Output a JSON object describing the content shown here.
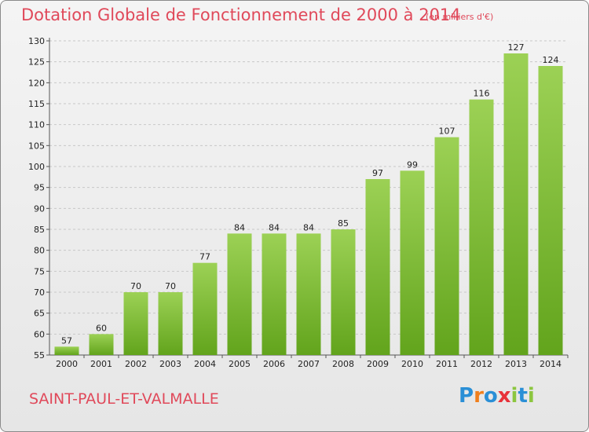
{
  "header": {
    "title": "Dotation Globale de Fonctionnement de 2000 à 2014",
    "unit": "(en milliers d'€)"
  },
  "footer": {
    "commune": "SAINT-PAUL-ET-VALMALLE",
    "logo_text": "Proxiti",
    "logo_letters": [
      {
        "ch": "P",
        "color": "#2a8fd6"
      },
      {
        "ch": "r",
        "color": "#f07f1c"
      },
      {
        "ch": "o",
        "color": "#2a8fd6"
      },
      {
        "ch": "x",
        "color": "#e8323a"
      },
      {
        "ch": "i",
        "color": "#8cc63f"
      },
      {
        "ch": "t",
        "color": "#2a8fd6"
      },
      {
        "ch": "i",
        "color": "#8cc63f"
      }
    ]
  },
  "colors": {
    "bar_top": "#9cd155",
    "bar_bottom": "#62a41c",
    "accent": "#e0495a",
    "grid": "#c8c8c8"
  },
  "chart_data": {
    "type": "bar",
    "title": "Dotation Globale de Fonctionnement de 2000 à 2014",
    "subtitle": "(en milliers d'€)",
    "categories": [
      "2000",
      "2001",
      "2002",
      "2003",
      "2004",
      "2005",
      "2006",
      "2007",
      "2008",
      "2009",
      "2010",
      "2011",
      "2012",
      "2013",
      "2014"
    ],
    "values": [
      57,
      60,
      70,
      70,
      77,
      84,
      84,
      84,
      85,
      97,
      99,
      107,
      116,
      127,
      124
    ],
    "ylim": [
      55,
      130
    ],
    "yticks": [
      55,
      60,
      65,
      70,
      75,
      80,
      85,
      90,
      95,
      100,
      105,
      110,
      115,
      120,
      125,
      130
    ],
    "grid": "horizontal dashed",
    "legend": "none"
  }
}
